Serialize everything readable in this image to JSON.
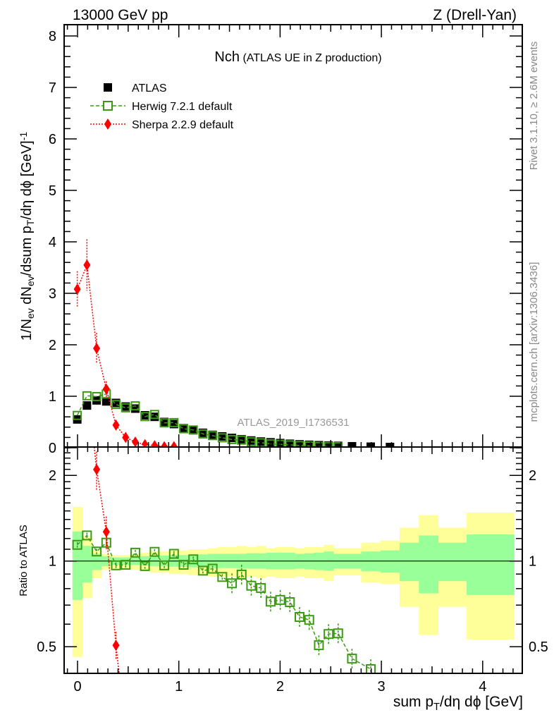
{
  "header": {
    "left": "13000 GeV pp",
    "right": "Z (Drell-Yan)"
  },
  "side_text": {
    "rivet": "Rivet 3.1.10, ≥ 2.6M events",
    "mcplots": "mcplots.cern.ch [arXiv:1306.3436]"
  },
  "watermark": "ATLAS_2019_I1736531",
  "colors": {
    "data": "#000000",
    "herwig": "#3b9a12",
    "sherpa": "#ff0000",
    "band_inner": "#99ff99",
    "band_outer": "#ffff99"
  },
  "chart_data": [
    {
      "type": "scatter",
      "title_main": "Nch",
      "title_sub": "(ATLAS UE in Z production)",
      "ylabel_parts": [
        {
          "t": "1/N",
          "s": ""
        },
        {
          "t": "ev",
          "s": "sub"
        },
        {
          "t": " dN",
          "s": ""
        },
        {
          "t": "ev",
          "s": "sub"
        },
        {
          "t": "/dsum p",
          "s": ""
        },
        {
          "t": "T",
          "s": "sub"
        },
        {
          "t": "/dη dϕ  [GeV]",
          "s": ""
        },
        {
          "t": "-1",
          "s": "sup"
        }
      ],
      "xlabel_parts": [
        {
          "t": "sum p",
          "s": ""
        },
        {
          "t": "T",
          "s": "sub"
        },
        {
          "t": "/dη dϕ [GeV]",
          "s": ""
        }
      ],
      "xlim": [
        -0.13,
        4.4
      ],
      "ylim": [
        0,
        8.22
      ],
      "xticks": [
        "0",
        "1",
        "2",
        "3",
        "4"
      ],
      "yticks": [
        "0",
        "1",
        "2",
        "3",
        "4",
        "5",
        "6",
        "7",
        "8"
      ],
      "bin_edges": [
        -0.05,
        0.045,
        0.141,
        0.236,
        0.332,
        0.427,
        0.523,
        0.618,
        0.713,
        0.809,
        0.904,
        1.0,
        1.095,
        1.19,
        1.286,
        1.381,
        1.477,
        1.572,
        1.667,
        1.763,
        1.858,
        1.954,
        2.049,
        2.144,
        2.24,
        2.335,
        2.431,
        2.526,
        2.62,
        2.8,
        2.99,
        3.18,
        3.37,
        3.56,
        3.84,
        4.31
      ],
      "legend_position": "top-left",
      "series": [
        {
          "name": "ATLAS",
          "key": "data",
          "values": [
            0.55,
            0.82,
            0.92,
            0.9,
            0.87,
            0.8,
            0.76,
            0.63,
            0.6,
            0.5,
            0.46,
            0.38,
            0.34,
            0.29,
            0.25,
            0.22,
            0.19,
            0.165,
            0.14,
            0.12,
            0.105,
            0.09,
            0.077,
            0.066,
            0.057,
            0.049,
            0.042,
            0.036,
            0.028,
            0.02,
            0.014,
            0.01,
            0.007,
            0.004,
            0.002
          ]
        },
        {
          "name": "Herwig 7.2.1 default",
          "key": "herwig",
          "values": [
            0.627,
            1.009,
            0.994,
            1.044,
            0.84,
            0.776,
            0.813,
            0.605,
            0.646,
            0.483,
            0.488,
            0.369,
            0.345,
            0.268,
            0.235,
            0.193,
            0.159,
            0.148,
            0.115,
            0.096,
            0.076,
            0.066,
            0.055,
            0.042,
            0.035,
            0.025,
            0.023,
            0.02,
            0.0127,
            0.0083
          ]
        },
        {
          "name": "Sherpa 2.2.9 default",
          "key": "sherpa",
          "values": [
            3.08,
            3.55,
            1.93,
            1.14,
            0.44,
            0.2,
            0.11,
            0.06,
            0.04,
            0.02,
            0.02
          ],
          "errors": [
            0.35,
            0.5,
            0.3,
            0.15,
            0.05,
            0.03,
            0.02,
            0.01,
            0.01,
            0.01,
            0.01
          ]
        }
      ]
    },
    {
      "type": "line",
      "ylabel": "Ratio to ATLAS",
      "yscale": "log",
      "ylim": [
        0.4,
        2.5
      ],
      "yticks": [
        "0.5",
        "1",
        "2"
      ],
      "ytick_values": [
        0.5,
        1,
        2
      ],
      "herwig_ratio": [
        1.14,
        1.23,
        1.08,
        1.16,
        0.966,
        0.97,
        1.07,
        0.96,
        1.077,
        0.966,
        1.06,
        0.97,
        1.014,
        0.925,
        0.94,
        0.879,
        0.835,
        0.896,
        0.819,
        0.804,
        0.72,
        0.73,
        0.717,
        0.636,
        0.621,
        0.506,
        0.554,
        0.557,
        0.454,
        0.417
      ],
      "bands_inner": [
        [
          0.73,
          1.27
        ],
        [
          0.84,
          1.13
        ],
        [
          0.93,
          1.06
        ],
        [
          0.96,
          1.04
        ],
        [
          0.97,
          1.03
        ],
        [
          0.97,
          1.03
        ],
        [
          0.97,
          1.035
        ],
        [
          0.965,
          1.04
        ],
        [
          0.96,
          1.04
        ],
        [
          0.96,
          1.045
        ],
        [
          0.955,
          1.05
        ],
        [
          0.955,
          1.05
        ],
        [
          0.95,
          1.05
        ],
        [
          0.95,
          1.055
        ],
        [
          0.945,
          1.06
        ],
        [
          0.945,
          1.06
        ],
        [
          0.945,
          1.06
        ],
        [
          0.94,
          1.06
        ],
        [
          0.94,
          1.065
        ],
        [
          0.94,
          1.065
        ],
        [
          0.935,
          1.07
        ],
        [
          0.935,
          1.07
        ],
        [
          0.935,
          1.07
        ],
        [
          0.94,
          1.06
        ],
        [
          0.935,
          1.065
        ],
        [
          0.93,
          1.07
        ],
        [
          0.925,
          1.08
        ],
        [
          0.94,
          1.06
        ],
        [
          0.94,
          1.06
        ],
        [
          0.92,
          1.08
        ],
        [
          0.91,
          1.09
        ],
        [
          0.85,
          1.16
        ],
        [
          0.77,
          1.23
        ],
        [
          0.85,
          1.16
        ],
        [
          0.76,
          1.24
        ]
      ],
      "bands_outer": [
        [
          0.46,
          1.55
        ],
        [
          0.74,
          1.22
        ],
        [
          0.87,
          1.09
        ],
        [
          0.93,
          1.06
        ],
        [
          0.94,
          1.05
        ],
        [
          0.94,
          1.05
        ],
        [
          0.93,
          1.06
        ],
        [
          0.92,
          1.07
        ],
        [
          0.91,
          1.08
        ],
        [
          0.91,
          1.08
        ],
        [
          0.9,
          1.09
        ],
        [
          0.9,
          1.09
        ],
        [
          0.89,
          1.1
        ],
        [
          0.89,
          1.1
        ],
        [
          0.88,
          1.11
        ],
        [
          0.88,
          1.12
        ],
        [
          0.88,
          1.12
        ],
        [
          0.87,
          1.13
        ],
        [
          0.88,
          1.12
        ],
        [
          0.87,
          1.13
        ],
        [
          0.88,
          1.11
        ],
        [
          0.87,
          1.12
        ],
        [
          0.87,
          1.12
        ],
        [
          0.88,
          1.11
        ],
        [
          0.87,
          1.12
        ],
        [
          0.87,
          1.12
        ],
        [
          0.85,
          1.14
        ],
        [
          0.89,
          1.11
        ],
        [
          0.89,
          1.11
        ],
        [
          0.84,
          1.16
        ],
        [
          0.83,
          1.18
        ],
        [
          0.69,
          1.31
        ],
        [
          0.55,
          1.45
        ],
        [
          0.69,
          1.31
        ],
        [
          0.53,
          1.48
        ]
      ]
    }
  ]
}
